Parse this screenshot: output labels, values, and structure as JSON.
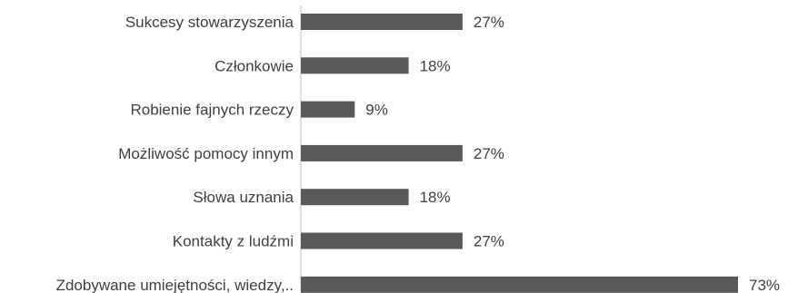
{
  "colors": {
    "bar": "#595959",
    "text": "#404040",
    "axis": "#bfbfbf"
  },
  "chart_data": {
    "type": "bar",
    "orientation": "horizontal",
    "categories": [
      "Sukcesy stowarzyszenia",
      "Członkowie",
      "Robienie fajnych rzeczy",
      "Możliwość pomocy innym",
      "Słowa uznania",
      "Kontakty z ludźmi",
      "Zdobywane umiejętności, wiedzy,.."
    ],
    "values": [
      27,
      18,
      9,
      27,
      18,
      27,
      73
    ],
    "value_labels": [
      "27%",
      "18%",
      "9%",
      "27%",
      "18%",
      "27%",
      "73%"
    ],
    "title": "",
    "xlabel": "",
    "ylabel": "",
    "xlim": [
      0,
      73
    ],
    "grid": false,
    "legend": "none"
  }
}
